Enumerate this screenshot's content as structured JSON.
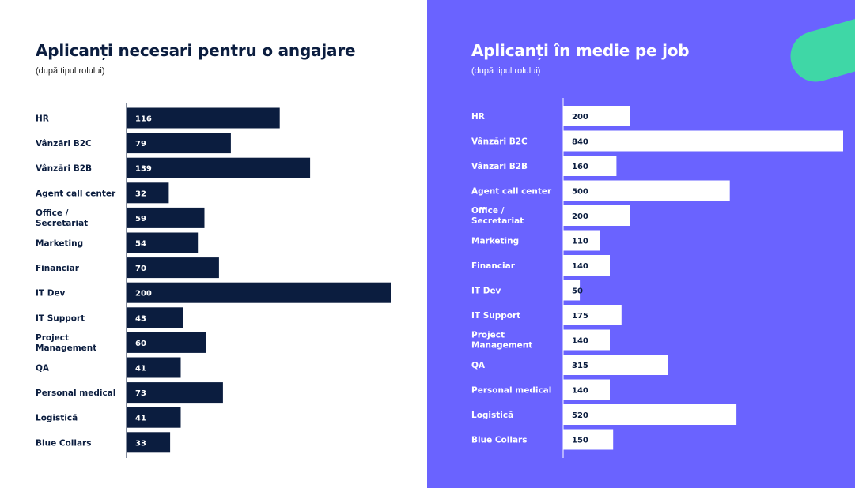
{
  "colors": {
    "left_bg": "#ffffff",
    "left_bar": "#0b1d3f",
    "left_text": "#0b1d3f",
    "right_bg": "#6a63ff",
    "right_bar": "#ffffff",
    "right_bar_text": "#0b1d3f",
    "right_text": "#ffffff",
    "accent_shape": "#3fd7a6"
  },
  "left": {
    "title": "Aplicanți necesari pentru o angajare",
    "subtitle": "(după tipul rolului)"
  },
  "right": {
    "title": "Aplicanți în medie pe job",
    "subtitle": "(după tipul rolului)"
  },
  "chart_data": [
    {
      "type": "bar",
      "orientation": "horizontal",
      "title": "Aplicanți necesari pentru o angajare",
      "subtitle": "(după tipul rolului)",
      "categories": [
        "HR",
        "Vânzări B2C",
        "Vânzări B2B",
        "Agent call center",
        "Office / Secretariat",
        "Marketing",
        "Financiar",
        "IT Dev",
        "IT Support",
        "Project Management",
        "QA",
        "Personal medical",
        "Logistică",
        "Blue Collars"
      ],
      "values": [
        116,
        79,
        139,
        32,
        59,
        54,
        70,
        200,
        43,
        60,
        41,
        73,
        41,
        33
      ],
      "xlim": [
        0,
        200
      ],
      "grid": false,
      "legend": "none"
    },
    {
      "type": "bar",
      "orientation": "horizontal",
      "title": "Aplicanți în medie pe job",
      "subtitle": "(după tipul rolului)",
      "categories": [
        "HR",
        "Vânzări B2C",
        "Vânzări B2B",
        "Agent call center",
        "Office / Secretariat",
        "Marketing",
        "Financiar",
        "IT Dev",
        "IT Support",
        "Project Management",
        "QA",
        "Personal medical",
        "Logistică",
        "Blue Collars"
      ],
      "values": [
        200,
        840,
        160,
        500,
        200,
        110,
        140,
        50,
        175,
        140,
        315,
        140,
        520,
        150
      ],
      "xlim": [
        0,
        840
      ],
      "grid": false,
      "legend": "none"
    }
  ]
}
